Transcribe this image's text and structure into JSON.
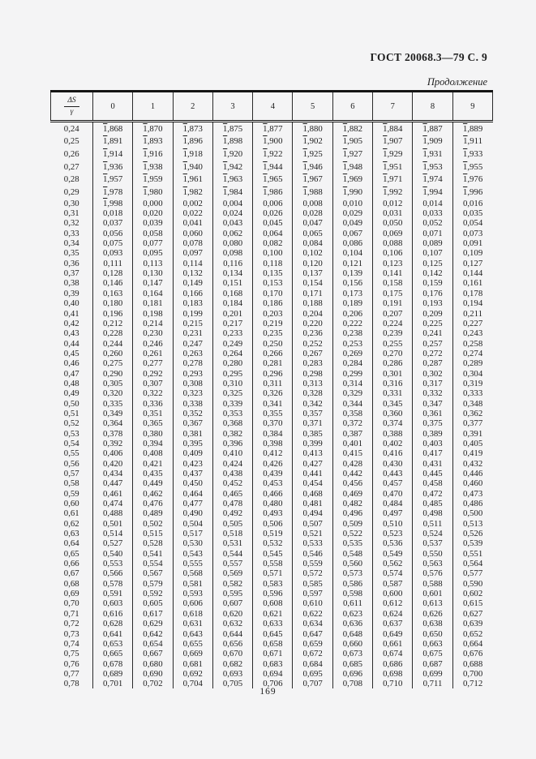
{
  "page": {
    "header": "ГОСТ 20068.3—79 С. 9",
    "continuation_label": "Продолжение",
    "page_number": "169"
  },
  "colors": {
    "page_bg": "#f4f4f5",
    "ink": "#1e1e1e"
  },
  "table": {
    "corner_header": {
      "numerator": "ΔS",
      "denominator": "γ"
    },
    "column_headers": [
      "0",
      "1",
      "2",
      "3",
      "4",
      "5",
      "6",
      "7",
      "8",
      "9"
    ],
    "overline_marker": "~",
    "rows": [
      {
        "label": "0,24",
        "values": [
          "~1,868",
          "~1,870",
          "~1,873",
          "~1,875",
          "~1,877",
          "~1,880",
          "~1,882",
          "~1,884",
          "~1,887",
          "~1,889"
        ]
      },
      {
        "label": "0,25",
        "values": [
          "~1,891",
          "~1,893",
          "~1,896",
          "~1,898",
          "~1,900",
          "~1,902",
          "~1,905",
          "~1,907",
          "~1,909",
          "~1,911"
        ]
      },
      {
        "label": "0,26",
        "values": [
          "~1,914",
          "~1,916",
          "~1,918",
          "~1,920",
          "~1,922",
          "~1,925",
          "~1,927",
          "~1,929",
          "~1,931",
          "~1,933"
        ]
      },
      {
        "label": "0,27",
        "values": [
          "~1,936",
          "~1,938",
          "~1,940",
          "~1,942",
          "~1,944",
          "~1,946",
          "~1,948",
          "~1,951",
          "~1,953",
          "~1,955"
        ]
      },
      {
        "label": "0,28",
        "values": [
          "~1,957",
          "~1,959",
          "~1,961",
          "~1,963",
          "~1,965",
          "~1,967",
          "~1,969",
          "~1,971",
          "~1,974",
          "~1,976"
        ]
      },
      {
        "label": "0,29",
        "values": [
          "~1,978",
          "~1,980",
          "~1,982",
          "~1,984",
          "~1,986",
          "~1,988",
          "~1,990",
          "~1,992",
          "~1,994",
          "~1,996"
        ]
      },
      {
        "label": "0,30",
        "values": [
          "~1,998",
          "0,000",
          "0,002",
          "0,004",
          "0,006",
          "0,008",
          "0,010",
          "0,012",
          "0,014",
          "0,016"
        ]
      },
      {
        "label": "0,31",
        "values": [
          "0,018",
          "0,020",
          "0,022",
          "0,024",
          "0,026",
          "0,028",
          "0,029",
          "0,031",
          "0,033",
          "0,035"
        ]
      },
      {
        "label": "0,32",
        "values": [
          "0,037",
          "0,039",
          "0,041",
          "0,043",
          "0,045",
          "0,047",
          "0,049",
          "0,050",
          "0,052",
          "0,054"
        ]
      },
      {
        "label": "0,33",
        "values": [
          "0,056",
          "0,058",
          "0,060",
          "0,062",
          "0,064",
          "0,065",
          "0,067",
          "0,069",
          "0,071",
          "0,073"
        ]
      },
      {
        "label": "0,34",
        "values": [
          "0,075",
          "0,077",
          "0,078",
          "0,080",
          "0,082",
          "0,084",
          "0,086",
          "0,088",
          "0,089",
          "0,091"
        ]
      },
      {
        "label": "0,35",
        "values": [
          "0,093",
          "0,095",
          "0,097",
          "0,098",
          "0,100",
          "0,102",
          "0,104",
          "0,106",
          "0,107",
          "0,109"
        ]
      },
      {
        "label": "0,36",
        "values": [
          "0,111",
          "0,113",
          "0,114",
          "0,116",
          "0,118",
          "0,120",
          "0,121",
          "0,123",
          "0,125",
          "0,127"
        ]
      },
      {
        "label": "0,37",
        "values": [
          "0,128",
          "0,130",
          "0,132",
          "0,134",
          "0,135",
          "0,137",
          "0,139",
          "0,141",
          "0,142",
          "0,144"
        ]
      },
      {
        "label": "0,38",
        "values": [
          "0,146",
          "0,147",
          "0,149",
          "0,151",
          "0,153",
          "0,154",
          "0,156",
          "0,158",
          "0,159",
          "0,161"
        ]
      },
      {
        "label": "0,39",
        "values": [
          "0,163",
          "0,164",
          "0,166",
          "0,168",
          "0,170",
          "0,171",
          "0,173",
          "0,175",
          "0,176",
          "0,178"
        ]
      },
      {
        "label": "0,40",
        "values": [
          "0,180",
          "0,181",
          "0,183",
          "0,184",
          "0,186",
          "0,188",
          "0,189",
          "0,191",
          "0,193",
          "0,194"
        ]
      },
      {
        "label": "0,41",
        "values": [
          "0,196",
          "0,198",
          "0,199",
          "0,201",
          "0,203",
          "0,204",
          "0,206",
          "0,207",
          "0,209",
          "0,211"
        ]
      },
      {
        "label": "0,42",
        "values": [
          "0,212",
          "0,214",
          "0,215",
          "0,217",
          "0,219",
          "0,220",
          "0,222",
          "0,224",
          "0,225",
          "0,227"
        ]
      },
      {
        "label": "0,43",
        "values": [
          "0,228",
          "0,230",
          "0,231",
          "0,233",
          "0,235",
          "0,236",
          "0,238",
          "0,239",
          "0,241",
          "0,243"
        ]
      },
      {
        "label": "0,44",
        "values": [
          "0,244",
          "0,246",
          "0,247",
          "0,249",
          "0,250",
          "0,252",
          "0,253",
          "0,255",
          "0,257",
          "0,258"
        ]
      },
      {
        "label": "0,45",
        "values": [
          "0,260",
          "0,261",
          "0,263",
          "0,264",
          "0,266",
          "0,267",
          "0,269",
          "0,270",
          "0,272",
          "0,274"
        ]
      },
      {
        "label": "0,46",
        "values": [
          "0,275",
          "0,277",
          "0,278",
          "0,280",
          "0,281",
          "0,283",
          "0,284",
          "0,286",
          "0,287",
          "0,289"
        ]
      },
      {
        "label": "0,47",
        "values": [
          "0,290",
          "0,292",
          "0,293",
          "0,295",
          "0,296",
          "0,298",
          "0,299",
          "0,301",
          "0,302",
          "0,304"
        ]
      },
      {
        "label": "0,48",
        "values": [
          "0,305",
          "0,307",
          "0,308",
          "0,310",
          "0,311",
          "0,313",
          "0,314",
          "0,316",
          "0,317",
          "0,319"
        ]
      },
      {
        "label": "0,49",
        "values": [
          "0,320",
          "0,322",
          "0,323",
          "0,325",
          "0,326",
          "0,328",
          "0,329",
          "0,331",
          "0,332",
          "0,333"
        ]
      },
      {
        "label": "0,50",
        "values": [
          "0,335",
          "0,336",
          "0,338",
          "0,339",
          "0,341",
          "0,342",
          "0,344",
          "0,345",
          "0,347",
          "0,348"
        ]
      },
      {
        "label": "0,51",
        "values": [
          "0,349",
          "0,351",
          "0,352",
          "0,353",
          "0,355",
          "0,357",
          "0,358",
          "0,360",
          "0,361",
          "0,362"
        ]
      },
      {
        "label": "0,52",
        "values": [
          "0,364",
          "0,365",
          "0,367",
          "0,368",
          "0,370",
          "0,371",
          "0,372",
          "0,374",
          "0,375",
          "0,377"
        ]
      },
      {
        "label": "0,53",
        "values": [
          "0,378",
          "0,380",
          "0,381",
          "0,382",
          "0,384",
          "0,385",
          "0,387",
          "0,388",
          "0,389",
          "0,391"
        ]
      },
      {
        "label": "0,54",
        "values": [
          "0,392",
          "0,394",
          "0,395",
          "0,396",
          "0,398",
          "0,399",
          "0,401",
          "0,402",
          "0,403",
          "0,405"
        ]
      },
      {
        "label": "0,55",
        "values": [
          "0,406",
          "0,408",
          "0,409",
          "0,410",
          "0,412",
          "0,413",
          "0,415",
          "0,416",
          "0,417",
          "0,419"
        ]
      },
      {
        "label": "0,56",
        "values": [
          "0,420",
          "0,421",
          "0,423",
          "0,424",
          "0,426",
          "0,427",
          "0,428",
          "0,430",
          "0,431",
          "0,432"
        ]
      },
      {
        "label": "0,57",
        "values": [
          "0,434",
          "0,435",
          "0,437",
          "0,438",
          "0,439",
          "0,441",
          "0,442",
          "0,443",
          "0,445",
          "0,446"
        ]
      },
      {
        "label": "0,58",
        "values": [
          "0,447",
          "0,449",
          "0,450",
          "0,452",
          "0,453",
          "0,454",
          "0,456",
          "0,457",
          "0,458",
          "0,460"
        ]
      },
      {
        "label": "0,59",
        "values": [
          "0,461",
          "0,462",
          "0,464",
          "0,465",
          "0,466",
          "0,468",
          "0,469",
          "0,470",
          "0,472",
          "0,473"
        ]
      },
      {
        "label": "0,60",
        "values": [
          "0,474",
          "0,476",
          "0,477",
          "0,478",
          "0,480",
          "0,481",
          "0,482",
          "0,484",
          "0,485",
          "0,486"
        ]
      },
      {
        "label": "0,61",
        "values": [
          "0,488",
          "0,489",
          "0,490",
          "0,492",
          "0,493",
          "0,494",
          "0,496",
          "0,497",
          "0,498",
          "0,500"
        ]
      },
      {
        "label": "0,62",
        "values": [
          "0,501",
          "0,502",
          "0,504",
          "0,505",
          "0,506",
          "0,507",
          "0,509",
          "0,510",
          "0,511",
          "0,513"
        ]
      },
      {
        "label": "0,63",
        "values": [
          "0,514",
          "0,515",
          "0,517",
          "0,518",
          "0,519",
          "0,521",
          "0,522",
          "0,523",
          "0,524",
          "0,526"
        ]
      },
      {
        "label": "0,64",
        "values": [
          "0,527",
          "0,528",
          "0,530",
          "0,531",
          "0,532",
          "0,533",
          "0,535",
          "0,536",
          "0,537",
          "0,539"
        ]
      },
      {
        "label": "0,65",
        "values": [
          "0,540",
          "0,541",
          "0,543",
          "0,544",
          "0,545",
          "0,546",
          "0,548",
          "0,549",
          "0,550",
          "0,551"
        ]
      },
      {
        "label": "0,66",
        "values": [
          "0,553",
          "0,554",
          "0,555",
          "0,557",
          "0,558",
          "0,559",
          "0,560",
          "0,562",
          "0,563",
          "0,564"
        ]
      },
      {
        "label": "0,67",
        "values": [
          "0,566",
          "0,567",
          "0,568",
          "0,569",
          "0,571",
          "0,572",
          "0,573",
          "0,574",
          "0,576",
          "0,577"
        ]
      },
      {
        "label": "0,68",
        "values": [
          "0,578",
          "0,579",
          "0,581",
          "0,582",
          "0,583",
          "0,585",
          "0,586",
          "0,587",
          "0,588",
          "0,590"
        ]
      },
      {
        "label": "0,69",
        "values": [
          "0,591",
          "0,592",
          "0,593",
          "0,595",
          "0,596",
          "0,597",
          "0,598",
          "0,600",
          "0,601",
          "0,602"
        ]
      },
      {
        "label": "0,70",
        "values": [
          "0,603",
          "0,605",
          "0,606",
          "0,607",
          "0,608",
          "0,610",
          "0,611",
          "0,612",
          "0,613",
          "0,615"
        ]
      },
      {
        "label": "0,71",
        "values": [
          "0,616",
          "0,617",
          "0,618",
          "0,620",
          "0,621",
          "0,622",
          "0,623",
          "0,624",
          "0,626",
          "0,627"
        ]
      },
      {
        "label": "0,72",
        "values": [
          "0,628",
          "0,629",
          "0,631",
          "0,632",
          "0,633",
          "0,634",
          "0,636",
          "0,637",
          "0,638",
          "0,639"
        ]
      },
      {
        "label": "0,73",
        "values": [
          "0,641",
          "0,642",
          "0,643",
          "0,644",
          "0,645",
          "0,647",
          "0,648",
          "0,649",
          "0,650",
          "0,652"
        ]
      },
      {
        "label": "0,74",
        "values": [
          "0,653",
          "0,654",
          "0,655",
          "0,656",
          "0,658",
          "0,659",
          "0,660",
          "0,661",
          "0,663",
          "0,664"
        ]
      },
      {
        "label": "0,75",
        "values": [
          "0,665",
          "0,667",
          "0,669",
          "0,670",
          "0,671",
          "0,672",
          "0,673",
          "0,674",
          "0,675",
          "0,676"
        ]
      },
      {
        "label": "0,76",
        "values": [
          "0,678",
          "0,680",
          "0,681",
          "0,682",
          "0,683",
          "0,684",
          "0,685",
          "0,686",
          "0,687",
          "0,688"
        ]
      },
      {
        "label": "0,77",
        "values": [
          "0,689",
          "0,690",
          "0,692",
          "0,693",
          "0,694",
          "0,695",
          "0,696",
          "0,698",
          "0,699",
          "0,700"
        ]
      },
      {
        "label": "0,78",
        "values": [
          "0,701",
          "0,702",
          "0,704",
          "0,705",
          "0,706",
          "0,707",
          "0,708",
          "0,710",
          "0,711",
          "0,712"
        ]
      }
    ]
  }
}
